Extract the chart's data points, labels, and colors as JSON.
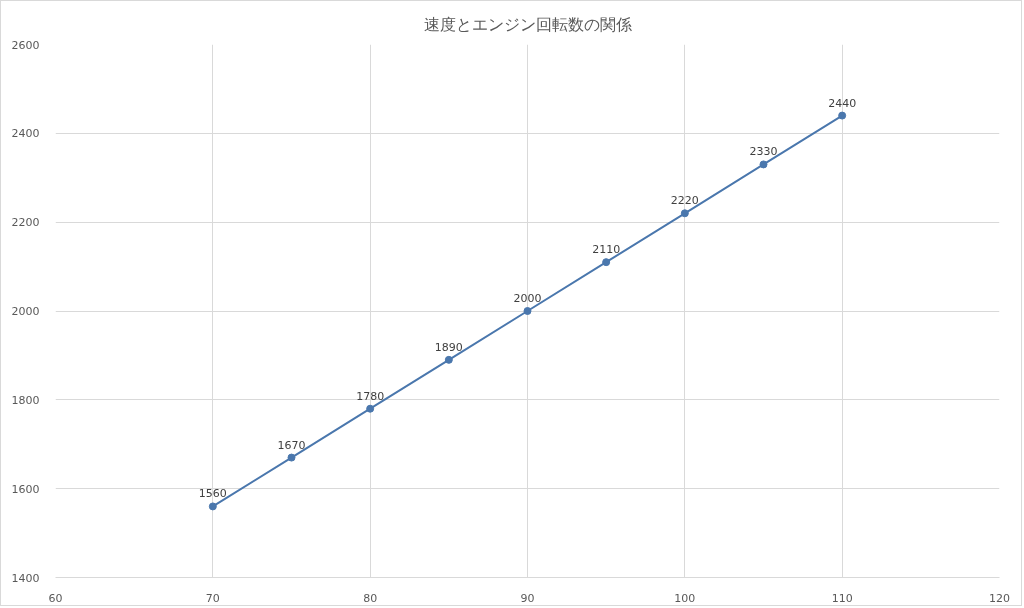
{
  "chart_data": {
    "type": "line",
    "title": "速度とエンジン回転数の関係",
    "x": [
      70,
      75,
      80,
      85,
      90,
      95,
      100,
      105,
      110
    ],
    "values": [
      1560,
      1670,
      1780,
      1890,
      2000,
      2110,
      2220,
      2330,
      2440
    ],
    "color": "#4a77ad",
    "xlim": [
      60,
      120
    ],
    "xticks": [
      60,
      70,
      80,
      90,
      100,
      110,
      120
    ],
    "ylim": [
      1400,
      2600
    ],
    "yticks": [
      1400,
      1600,
      1800,
      2000,
      2200,
      2400,
      2600
    ],
    "grid": true,
    "marker": "circle",
    "line_style": "solid",
    "data_labels": true
  }
}
